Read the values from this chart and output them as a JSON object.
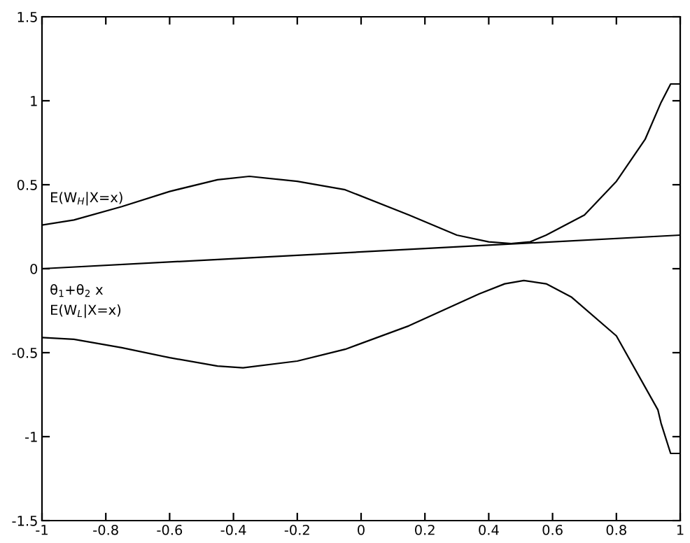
{
  "chart_data": {
    "type": "line",
    "xlim": [
      -1,
      1
    ],
    "ylim": [
      -1.5,
      1.5
    ],
    "xticks": [
      -1,
      -0.8,
      -0.6,
      -0.4,
      -0.2,
      0,
      0.2,
      0.4,
      0.6,
      0.8,
      1
    ],
    "yticks": [
      -1.5,
      -1,
      -0.5,
      0,
      0.5,
      1,
      1.5
    ],
    "grid": false,
    "legend": false,
    "marker": "none",
    "line_style": "solid",
    "series": [
      {
        "name": "E(W$_{H}$|X=x)",
        "color": "#000000",
        "x": [
          -1,
          -0.9,
          -0.75,
          -0.6,
          -0.45,
          -0.35,
          -0.2,
          -0.05,
          0.15,
          0.3,
          0.4,
          0.47,
          0.53,
          0.58,
          0.7,
          0.8,
          0.89,
          0.94,
          0.97,
          1
        ],
        "values": [
          0.26,
          0.29,
          0.37,
          0.46,
          0.53,
          0.55,
          0.52,
          0.47,
          0.32,
          0.2,
          0.16,
          0.15,
          0.16,
          0.2,
          0.32,
          0.52,
          0.77,
          0.99,
          1.1,
          1.1
        ]
      },
      {
        "name": "θ$_{1}$+θ$_{2}$ x",
        "color": "#000000",
        "x": [
          -1,
          1
        ],
        "values": [
          0,
          0.2
        ]
      },
      {
        "name": "E(W$_{L}$|X=x)",
        "color": "#000000",
        "x": [
          -1,
          -0.9,
          -0.75,
          -0.6,
          -0.45,
          -0.37,
          -0.2,
          -0.05,
          0.15,
          0.37,
          0.45,
          0.51,
          0.58,
          0.66,
          0.8,
          0.93,
          0.94,
          0.97,
          1
        ],
        "values": [
          -0.41,
          -0.42,
          -0.47,
          -0.53,
          -0.58,
          -0.59,
          -0.55,
          -0.48,
          -0.34,
          -0.15,
          -0.09,
          -0.07,
          -0.09,
          -0.17,
          -0.4,
          -0.84,
          -0.92,
          -1.1,
          -1.1
        ]
      }
    ]
  }
}
